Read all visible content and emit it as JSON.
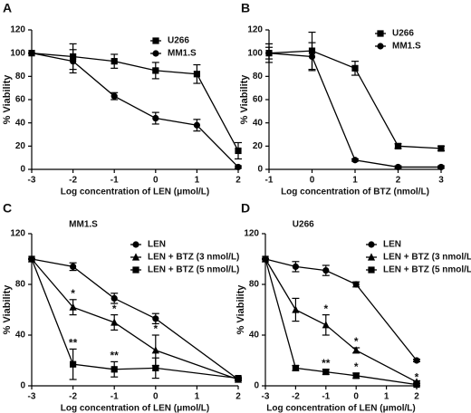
{
  "chart_data": [
    {
      "type": "line",
      "panel_label": "A",
      "xlabel": "Log concentration of LEN (μmol/L)",
      "ylabel": "% Viability",
      "x": [
        -3,
        -2,
        -1,
        0,
        1,
        2
      ],
      "xlim": [
        -3,
        2
      ],
      "xticks": [
        -3,
        -2,
        -1,
        0,
        1,
        2
      ],
      "ylim": [
        0,
        120
      ],
      "yticks": [
        0,
        20,
        40,
        60,
        80,
        100,
        120
      ],
      "series": [
        {
          "name": "U266",
          "marker": "square",
          "color": "#000000",
          "values": [
            100,
            97,
            93,
            85,
            82,
            16
          ],
          "errors": [
            0,
            11,
            6,
            7,
            8,
            7
          ]
        },
        {
          "name": "MM1.S",
          "marker": "circle",
          "color": "#000000",
          "values": [
            100,
            93,
            63,
            44,
            38,
            2
          ],
          "errors": [
            0,
            10,
            3,
            5,
            5,
            1
          ]
        }
      ]
    },
    {
      "type": "line",
      "panel_label": "B",
      "xlabel": "Log concentration of BTZ (nmol/L)",
      "ylabel": "% Viability",
      "x": [
        -1,
        0,
        1,
        2,
        3
      ],
      "xlim": [
        -1,
        3
      ],
      "xticks": [
        -1,
        0,
        1,
        2,
        3
      ],
      "ylim": [
        0,
        120
      ],
      "yticks": [
        0,
        20,
        40,
        60,
        80,
        100,
        120
      ],
      "series": [
        {
          "name": "U266",
          "marker": "square",
          "color": "#000000",
          "values": [
            100,
            102,
            87,
            20,
            18
          ],
          "errors": [
            8,
            16,
            6,
            2,
            2
          ]
        },
        {
          "name": "MM1.S",
          "marker": "circle",
          "color": "#000000",
          "values": [
            100,
            97,
            8,
            2,
            2
          ],
          "errors": [
            5,
            12,
            1,
            1,
            1
          ]
        }
      ]
    },
    {
      "type": "line",
      "panel_label": "C",
      "title": "MM1.S",
      "xlabel": "Log concentration of LEN (μmol/L)",
      "ylabel": "% Viability",
      "x": [
        -3,
        -2,
        -1,
        0,
        2
      ],
      "xlim": [
        -3,
        2
      ],
      "xticks": [
        -3,
        -2,
        -1,
        0,
        1,
        2
      ],
      "ylim": [
        0,
        120
      ],
      "yticks": [
        0,
        40,
        80,
        120
      ],
      "series": [
        {
          "name": "LEN",
          "marker": "circle",
          "color": "#000000",
          "values": [
            100,
            94,
            69,
            53,
            5
          ],
          "errors": [
            0,
            3,
            4,
            4,
            1
          ],
          "significance": [
            null,
            null,
            null,
            null,
            null
          ]
        },
        {
          "name": "LEN + BTZ (3 nmol/L)",
          "marker": "triangle",
          "color": "#000000",
          "values": [
            100,
            62,
            50,
            28,
            5
          ],
          "errors": [
            0,
            6,
            6,
            12,
            1
          ],
          "significance": [
            null,
            "*",
            "*",
            "*",
            null
          ]
        },
        {
          "name": "LEN + BTZ (5 nmol/L)",
          "marker": "square",
          "color": "#000000",
          "values": [
            100,
            17,
            13,
            14,
            6
          ],
          "errors": [
            0,
            12,
            6,
            8,
            1
          ],
          "significance": [
            null,
            "**",
            "**",
            null,
            null
          ]
        }
      ]
    },
    {
      "type": "line",
      "panel_label": "D",
      "title": "U266",
      "xlabel": "Log concentration of LEN (μmol/L)",
      "ylabel": "% Viability",
      "x": [
        -3,
        -2,
        -1,
        0,
        2
      ],
      "xlim": [
        -3,
        2
      ],
      "xticks": [
        -3,
        -2,
        -1,
        0,
        1,
        2
      ],
      "ylim": [
        0,
        120
      ],
      "yticks": [
        0,
        40,
        80,
        120
      ],
      "series": [
        {
          "name": "LEN",
          "marker": "circle",
          "color": "#000000",
          "values": [
            100,
            94,
            91,
            80,
            20
          ],
          "errors": [
            0,
            4,
            4,
            2,
            1
          ],
          "significance": [
            null,
            null,
            null,
            null,
            null
          ]
        },
        {
          "name": "LEN + BTZ (3 nmol/L)",
          "marker": "triangle",
          "color": "#000000",
          "values": [
            100,
            60,
            48,
            28,
            3
          ],
          "errors": [
            0,
            9,
            8,
            2,
            1
          ],
          "significance": [
            null,
            null,
            "*",
            "*",
            null
          ]
        },
        {
          "name": "LEN + BTZ (5 nmol/L)",
          "marker": "square",
          "color": "#000000",
          "values": [
            100,
            14,
            11,
            8,
            1
          ],
          "errors": [
            0,
            2,
            2,
            2,
            1
          ],
          "significance": [
            null,
            null,
            "**",
            "*",
            "*"
          ]
        }
      ]
    }
  ]
}
